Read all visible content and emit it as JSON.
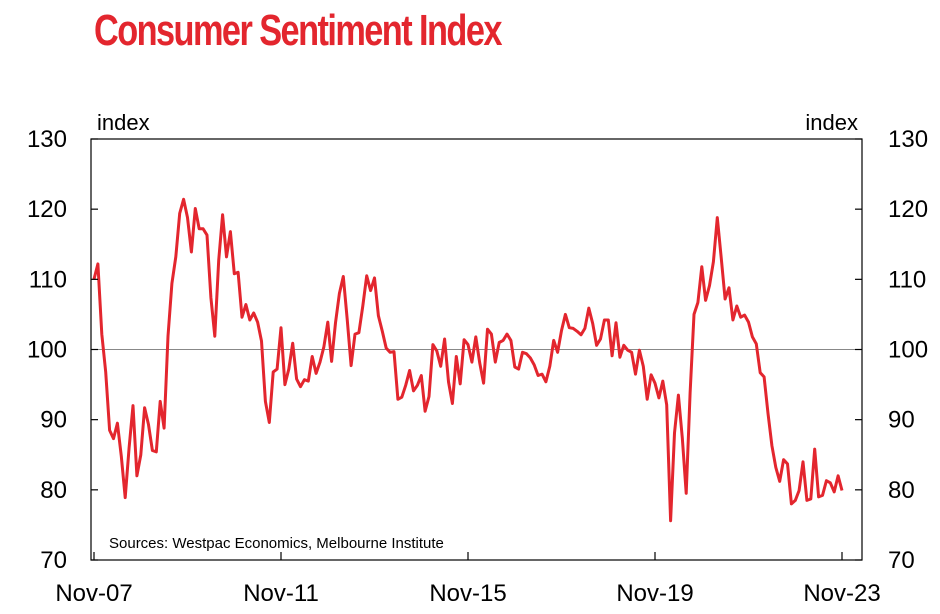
{
  "chart_data": {
    "type": "line",
    "title": "Consumer Sentiment Index",
    "ylabel_left": "index",
    "ylabel_right": "index",
    "source_note": "Sources: Westpac Economics, Melbourne Institute",
    "ylim": [
      70,
      130
    ],
    "yticks": [
      "70",
      "80",
      "90",
      "100",
      "110",
      "120",
      "130"
    ],
    "xticks": [
      "Nov-07",
      "Nov-11",
      "Nov-15",
      "Nov-19",
      "Nov-23"
    ],
    "reference_line": 100,
    "grid": false,
    "line_color": "#e3262e",
    "axis_color": "#000000",
    "title_color": "#e3262e",
    "reference_color": "#888888",
    "series": [
      {
        "x_start": "2007-11",
        "x_step_months": 1,
        "values": [
          110.0,
          112.2,
          102.2,
          96.8,
          88.5,
          87.3,
          89.5,
          84.8,
          78.9,
          86.0,
          92.0,
          82.0,
          85.0,
          91.7,
          89.3,
          85.6,
          85.4,
          92.6,
          88.8,
          101.9,
          109.4,
          113.2,
          119.4,
          121.4,
          118.8,
          113.9,
          120.1,
          117.2,
          117.2,
          116.3,
          107.4,
          101.9,
          112.7,
          119.2,
          113.2,
          116.8,
          110.8,
          111.0,
          104.6,
          106.4,
          104.2,
          105.2,
          103.9,
          101.2,
          92.6,
          89.6,
          96.8,
          97.2,
          103.1,
          95.0,
          97.2,
          100.9,
          95.8,
          94.7,
          95.7,
          95.5,
          99.0,
          96.6,
          98.2,
          100.4,
          103.9,
          98.3,
          103.8,
          108.0,
          110.4,
          104.3,
          97.7,
          102.2,
          102.4,
          106.2,
          110.5,
          108.4,
          110.2,
          104.8,
          102.6,
          100.2,
          99.6,
          99.7,
          92.9,
          93.2,
          94.9,
          97.0,
          94.1,
          94.9,
          96.3,
          91.2,
          93.3,
          100.7,
          99.8,
          97.6,
          101.5,
          95.4,
          92.3,
          99.0,
          95.1,
          101.4,
          100.7,
          98.2,
          101.8,
          98.1,
          95.2,
          102.9,
          102.2,
          98.2,
          101.0,
          101.3,
          102.2,
          101.3,
          97.5,
          97.2,
          99.6,
          99.4,
          98.8,
          97.8,
          96.3,
          96.5,
          95.4,
          97.6,
          101.3,
          99.6,
          102.7,
          105.0,
          103.1,
          103.0,
          102.6,
          102.1,
          103.0,
          105.9,
          103.7,
          100.6,
          101.5,
          104.2,
          104.2,
          99.1,
          103.8,
          98.9,
          100.6,
          99.9,
          99.6,
          96.5,
          99.9,
          97.6,
          92.9,
          96.4,
          95.2,
          93.1,
          95.5,
          92.1,
          75.6,
          88.1,
          93.5,
          87.4,
          79.5,
          93.8,
          105.0,
          106.7,
          111.8,
          107.0,
          109.1,
          112.5,
          118.8,
          113.1,
          107.2,
          108.8,
          104.2,
          106.2,
          104.6,
          104.9,
          103.9,
          101.8,
          100.8,
          96.7,
          96.1,
          90.9,
          86.3,
          83.2,
          81.2,
          84.3,
          83.7,
          78.0,
          78.5,
          79.9,
          84.0,
          78.5,
          78.7,
          85.8,
          79.0,
          79.2,
          81.3,
          81.0,
          79.7,
          82.0,
          79.9
        ]
      }
    ]
  }
}
